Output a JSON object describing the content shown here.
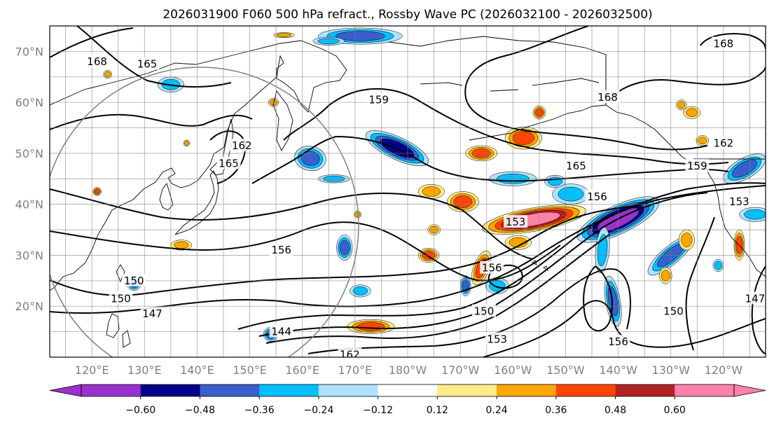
{
  "chart_data": {
    "type": "heatmap",
    "title": "2026031900 F060 500 hPa refract., Rossby Wave PC (2026032100 - 2026032500)",
    "map": {
      "lat_range": [
        10,
        75
      ],
      "lon_range": [
        112,
        248
      ],
      "lat_ticks": [
        {
          "value": 70,
          "label": "70°N"
        },
        {
          "value": 60,
          "label": "60°N"
        },
        {
          "value": 50,
          "label": "50°N"
        },
        {
          "value": 40,
          "label": "40°N"
        },
        {
          "value": 30,
          "label": "30°N"
        },
        {
          "value": 20,
          "label": "20°N"
        }
      ],
      "lon_ticks": [
        {
          "value": 120,
          "label": "120°E"
        },
        {
          "value": 130,
          "label": "130°E"
        },
        {
          "value": 140,
          "label": "140°E"
        },
        {
          "value": 150,
          "label": "150°E"
        },
        {
          "value": 160,
          "label": "160°E"
        },
        {
          "value": 170,
          "label": "170°E"
        },
        {
          "value": 180,
          "label": "180°W"
        },
        {
          "value": 190,
          "label": "170°W"
        },
        {
          "value": 200,
          "label": "160°W"
        },
        {
          "value": 210,
          "label": "150°W"
        },
        {
          "value": 220,
          "label": "140°W"
        },
        {
          "value": 230,
          "label": "130°W"
        },
        {
          "value": 240,
          "label": "120°W"
        }
      ],
      "grid": true,
      "gridlines_lat": [
        10,
        15,
        20,
        25,
        30,
        35,
        40,
        45,
        50,
        55,
        60,
        65,
        70,
        75
      ],
      "gridlines_lon": [
        115,
        120,
        125,
        130,
        135,
        140,
        145,
        150,
        155,
        160,
        165,
        170,
        175,
        180,
        185,
        190,
        195,
        200,
        205,
        210,
        215,
        220,
        225,
        230,
        235,
        240,
        245
      ]
    },
    "colorbar": {
      "levels": [
        -0.6,
        -0.48,
        -0.36,
        -0.24,
        -0.12,
        0.12,
        0.24,
        0.36,
        0.48,
        0.6
      ],
      "tick_labels": [
        "−0.60",
        "−0.48",
        "−0.36",
        "−0.24",
        "−0.12",
        "0.12",
        "0.24",
        "0.36",
        "0.48",
        "0.60"
      ],
      "colors": [
        "#9932cc",
        "#00008b",
        "#3a5fcd",
        "#00bfff",
        "#b0e2ff",
        "#ffffff",
        "#ffec8b",
        "#ffa500",
        "#ff4500",
        "#b22222",
        "#ff82ab"
      ],
      "extend": "both"
    },
    "height_contours": {
      "units": "dam",
      "labels": [
        {
          "value": "168",
          "lon": 121,
          "lat": 68
        },
        {
          "value": "165",
          "lon": 130.5,
          "lat": 67.5
        },
        {
          "value": "162",
          "lon": 148.5,
          "lat": 51.5
        },
        {
          "value": "165",
          "lon": 146,
          "lat": 48
        },
        {
          "value": "159",
          "lon": 174.5,
          "lat": 60.5
        },
        {
          "value": "168",
          "lon": 218,
          "lat": 61
        },
        {
          "value": "168",
          "lon": 240,
          "lat": 71.5
        },
        {
          "value": "162",
          "lon": 240,
          "lat": 52
        },
        {
          "value": "159",
          "lon": 235,
          "lat": 47.5
        },
        {
          "value": "165",
          "lon": 212,
          "lat": 47.5
        },
        {
          "value": "156",
          "lon": 216,
          "lat": 41.5
        },
        {
          "value": "153",
          "lon": 243,
          "lat": 40.5
        },
        {
          "value": "153",
          "lon": 200.5,
          "lat": 36.5
        },
        {
          "value": "156",
          "lon": 156,
          "lat": 31
        },
        {
          "value": "156",
          "lon": 196,
          "lat": 27.5
        },
        {
          "value": "150",
          "lon": 128,
          "lat": 25
        },
        {
          "value": "150",
          "lon": 125.5,
          "lat": 21.5
        },
        {
          "value": "147",
          "lon": 131.5,
          "lat": 18.5
        },
        {
          "value": "150",
          "lon": 194.5,
          "lat": 19
        },
        {
          "value": "150",
          "lon": 230.5,
          "lat": 19
        },
        {
          "value": "147",
          "lon": 246,
          "lat": 21.5
        },
        {
          "value": "144",
          "lon": 156,
          "lat": 15
        },
        {
          "value": "162",
          "lon": 169,
          "lat": 10.5
        },
        {
          "value": "153",
          "lon": 197,
          "lat": 13.5
        },
        {
          "value": "156",
          "lon": 220,
          "lat": 13
        }
      ]
    },
    "anomalies": [
      {
        "lon": 178,
        "lat": 51,
        "rx": 6.5,
        "ry": 2.2,
        "rot": 25,
        "value": -0.55
      },
      {
        "lon": 161.5,
        "lat": 49,
        "rx": 3,
        "ry": 2.4,
        "rot": 10,
        "value": -0.45
      },
      {
        "lon": 220,
        "lat": 37,
        "rx": 8.5,
        "ry": 2.8,
        "rot": -25,
        "value": -0.65
      },
      {
        "lon": 230,
        "lat": 30,
        "rx": 5.5,
        "ry": 1.8,
        "rot": -40,
        "value": -0.45
      },
      {
        "lon": 244,
        "lat": 47,
        "rx": 4.5,
        "ry": 2,
        "rot": -30,
        "value": -0.4
      },
      {
        "lon": 246,
        "lat": 38,
        "rx": 3,
        "ry": 1.4,
        "rot": 0,
        "value": -0.3
      },
      {
        "lon": 219,
        "lat": 21,
        "rx": 1.4,
        "ry": 5,
        "rot": -10,
        "value": -0.45
      },
      {
        "lon": 217,
        "lat": 31,
        "rx": 1.3,
        "ry": 4.5,
        "rot": 5,
        "value": -0.3
      },
      {
        "lon": 171,
        "lat": 73,
        "rx": 8,
        "ry": 1.6,
        "rot": 0,
        "value": -0.4
      },
      {
        "lon": 168,
        "lat": 31.5,
        "rx": 1.5,
        "ry": 2.5,
        "rot": 0,
        "value": -0.4
      },
      {
        "lon": 211,
        "lat": 42,
        "rx": 3.5,
        "ry": 2,
        "rot": 0,
        "value": -0.3
      },
      {
        "lon": 200,
        "lat": 45,
        "rx": 4.5,
        "ry": 1.4,
        "rot": 0,
        "value": -0.3
      },
      {
        "lon": 197,
        "lat": 24,
        "rx": 2.2,
        "ry": 1.6,
        "rot": 0,
        "value": -0.35
      },
      {
        "lon": 191,
        "lat": 24,
        "rx": 1,
        "ry": 2,
        "rot": 0,
        "value": -0.45
      },
      {
        "lon": 128,
        "lat": 24.5,
        "rx": 1.4,
        "ry": 1.4,
        "rot": 0,
        "value": -0.4
      },
      {
        "lon": 154,
        "lat": 14.5,
        "rx": 1.4,
        "ry": 1.4,
        "rot": 0,
        "value": -0.4
      },
      {
        "lon": 165,
        "lat": 72,
        "rx": 3,
        "ry": 0.8,
        "rot": 0,
        "value": -0.3
      },
      {
        "lon": 135,
        "lat": 63.5,
        "rx": 2.5,
        "ry": 1.5,
        "rot": 0,
        "value": -0.25
      },
      {
        "lon": 171,
        "lat": 23,
        "rx": 2,
        "ry": 1.2,
        "rot": 0,
        "value": -0.3
      },
      {
        "lon": 166,
        "lat": 45,
        "rx": 3,
        "ry": 0.8,
        "rot": 0,
        "value": -0.25
      },
      {
        "lon": 208,
        "lat": 44.5,
        "rx": 2,
        "ry": 1.2,
        "rot": 0,
        "value": -0.3
      },
      {
        "lon": 239,
        "lat": 28,
        "rx": 1,
        "ry": 1.2,
        "rot": 0,
        "value": -0.3
      },
      {
        "lon": 204,
        "lat": 37,
        "rx": 10,
        "ry": 2.3,
        "rot": -10,
        "value": 0.68
      },
      {
        "lon": 202,
        "lat": 53,
        "rx": 3.5,
        "ry": 2.2,
        "rot": 0,
        "value": 0.45
      },
      {
        "lon": 194,
        "lat": 50,
        "rx": 3,
        "ry": 1.5,
        "rot": 0,
        "value": 0.4
      },
      {
        "lon": 194,
        "lat": 27.5,
        "rx": 1.5,
        "ry": 3.5,
        "rot": 20,
        "value": 0.4
      },
      {
        "lon": 190.5,
        "lat": 40.5,
        "rx": 3,
        "ry": 2,
        "rot": 0,
        "value": 0.4
      },
      {
        "lon": 184.5,
        "lat": 42.5,
        "rx": 2.5,
        "ry": 1.4,
        "rot": 0,
        "value": 0.3
      },
      {
        "lon": 184,
        "lat": 30,
        "rx": 2,
        "ry": 1.4,
        "rot": 0,
        "value": 0.4
      },
      {
        "lon": 173,
        "lat": 16,
        "rx": 4.5,
        "ry": 1.4,
        "rot": 0,
        "value": 0.4
      },
      {
        "lon": 243,
        "lat": 32,
        "rx": 1,
        "ry": 3,
        "rot": 0,
        "value": 0.38
      },
      {
        "lon": 233,
        "lat": 33,
        "rx": 1.5,
        "ry": 2,
        "rot": 0,
        "value": 0.35
      },
      {
        "lon": 229,
        "lat": 26,
        "rx": 1.2,
        "ry": 1.6,
        "rot": 0,
        "value": 0.3
      },
      {
        "lon": 234,
        "lat": 58,
        "rx": 1.6,
        "ry": 1.2,
        "rot": 0,
        "value": 0.3
      },
      {
        "lon": 236,
        "lat": 52.5,
        "rx": 1.2,
        "ry": 1,
        "rot": 0,
        "value": 0.3
      },
      {
        "lon": 185,
        "lat": 35,
        "rx": 1.2,
        "ry": 1,
        "rot": 0,
        "value": 0.3
      },
      {
        "lon": 156.5,
        "lat": 73.2,
        "rx": 2,
        "ry": 0.5,
        "rot": 0,
        "value": 0.3
      },
      {
        "lon": 121,
        "lat": 42.5,
        "rx": 0.8,
        "ry": 0.8,
        "rot": 0,
        "value": 0.4
      },
      {
        "lon": 123,
        "lat": 65.5,
        "rx": 0.8,
        "ry": 0.8,
        "rot": 0,
        "value": 0.3
      },
      {
        "lon": 138,
        "lat": 52,
        "rx": 0.6,
        "ry": 0.6,
        "rot": 0,
        "value": 0.3
      },
      {
        "lon": 154.5,
        "lat": 60,
        "rx": 1,
        "ry": 0.8,
        "rot": 0,
        "value": 0.3
      },
      {
        "lon": 137,
        "lat": 32,
        "rx": 2,
        "ry": 1,
        "rot": 0,
        "value": 0.3
      },
      {
        "lon": 170.5,
        "lat": 38,
        "rx": 0.7,
        "ry": 0.7,
        "rot": 0,
        "value": 0.3
      },
      {
        "lon": 201,
        "lat": 32.5,
        "rx": 2.5,
        "ry": 1.4,
        "rot": 0,
        "value": 0.3
      },
      {
        "lon": 232,
        "lat": 59.5,
        "rx": 1,
        "ry": 1,
        "rot": 0,
        "value": 0.3
      },
      {
        "lon": 205,
        "lat": 58,
        "rx": 1.2,
        "ry": 1.3,
        "rot": 0,
        "value": 0.4
      }
    ]
  }
}
